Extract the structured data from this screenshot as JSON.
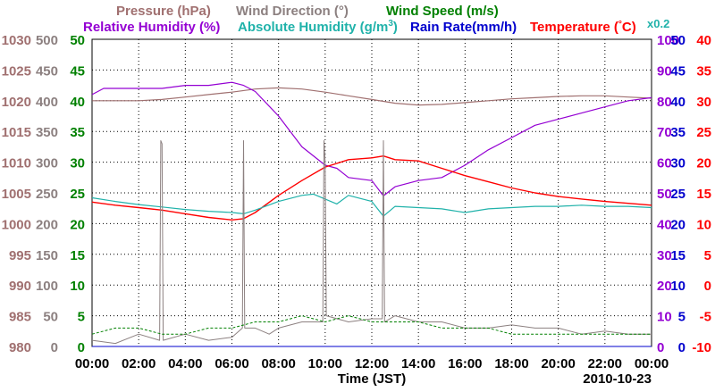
{
  "chart_data": {
    "type": "line",
    "date_label": "2010-10-23",
    "xlabel": "Time (JST)",
    "x_ticks": [
      "00:00",
      "02:00",
      "04:00",
      "06:00",
      "08:00",
      "10:00",
      "12:00",
      "14:00",
      "16:00",
      "18:00",
      "20:00",
      "22:00",
      "00:00"
    ],
    "x_range_hours": [
      0,
      24
    ],
    "legend_row1": [
      {
        "label": "Pressure (hPa)",
        "color": "#a07070"
      },
      {
        "label": "Wind Direction (°)",
        "color": "#8c8080"
      },
      {
        "label": "Wind Speed (m/s)",
        "color": "#008000"
      }
    ],
    "legend_row2": [
      {
        "label": "Relative Humidity (%)",
        "color": "#9400d3"
      },
      {
        "label": "Absolute Humidity (g/m",
        "sup": "3",
        "close": ")",
        "color": "#20b2aa"
      },
      {
        "label": "Rain Rate(mm/h)",
        "color": "#0000cd"
      },
      {
        "label": "Temperature (",
        "deg": "°",
        "unit": "C)",
        "color": "#ff0000"
      }
    ],
    "rain_scale_note": "x0.2",
    "axes": {
      "pressure": {
        "label": "Pressure (hPa)",
        "color": "#a07070",
        "range": [
          980,
          1030
        ],
        "ticks": [
          "980",
          "985",
          "990",
          "995",
          "1000",
          "1005",
          "1010",
          "1015",
          "1020",
          "1025",
          "1030"
        ]
      },
      "wind_direction": {
        "label": "Wind Direction (°)",
        "color": "#8c8080",
        "range": [
          0,
          500
        ],
        "ticks": [
          "0",
          "50",
          "100",
          "150",
          "200",
          "250",
          "300",
          "350",
          "400",
          "450",
          "500"
        ]
      },
      "wind_speed": {
        "label": "Wind Speed (m/s)",
        "color": "#008000",
        "range": [
          0,
          50
        ],
        "ticks": [
          "0",
          "5",
          "10",
          "15",
          "20",
          "25",
          "30",
          "35",
          "40",
          "45",
          "50"
        ]
      },
      "relative_humidity": {
        "label": "Relative Humidity (%)",
        "color": "#9400d3",
        "range": [
          0,
          100
        ],
        "ticks": [
          "0",
          "10",
          "20",
          "30",
          "40",
          "50",
          "60",
          "70",
          "80",
          "90",
          "100"
        ]
      },
      "rain_rate": {
        "label": "Rain Rate(mm/h)",
        "color": "#0000cd",
        "range": [
          0,
          50
        ],
        "ticks": [
          "0",
          "5",
          "10",
          "15",
          "20",
          "25",
          "30",
          "35",
          "40",
          "45",
          "50"
        ]
      },
      "temperature": {
        "label": "Temperature (°C)",
        "color": "#ff0000",
        "range": [
          -10,
          40
        ],
        "ticks": [
          "-10",
          "-5",
          "0",
          "5",
          "10",
          "15",
          "20",
          "25",
          "30",
          "35",
          "40"
        ]
      }
    },
    "series": [
      {
        "name": "Pressure",
        "unit": "hPa",
        "axis": "pressure",
        "color": "#a07070",
        "x": [
          0,
          1,
          2,
          3,
          4,
          5,
          6,
          7,
          8,
          9,
          10,
          11,
          12,
          13,
          14,
          15,
          16,
          17,
          18,
          19,
          20,
          21,
          22,
          23,
          24
        ],
        "values": [
          1020.0,
          1020.0,
          1020.0,
          1020.2,
          1020.6,
          1021.0,
          1021.4,
          1021.9,
          1022.1,
          1021.9,
          1021.4,
          1020.8,
          1020.2,
          1019.6,
          1019.3,
          1019.4,
          1019.7,
          1020.0,
          1020.3,
          1020.5,
          1020.7,
          1020.8,
          1020.8,
          1020.6,
          1020.4
        ]
      },
      {
        "name": "Relative Humidity",
        "unit": "%",
        "axis": "relative_humidity",
        "color": "#9400d3",
        "x": [
          0,
          0.5,
          1,
          2,
          3,
          4,
          5,
          6,
          6.5,
          7,
          8,
          9,
          10,
          10.5,
          11,
          12,
          12.5,
          13,
          14,
          15,
          16,
          17,
          18,
          19,
          20,
          21,
          22,
          23,
          24
        ],
        "values": [
          82,
          84,
          84,
          84,
          84,
          85,
          85,
          86,
          85,
          83,
          75,
          65,
          59,
          58,
          55,
          54,
          49,
          52,
          54,
          55,
          59,
          64,
          68,
          72,
          74,
          76,
          78,
          80,
          81
        ]
      },
      {
        "name": "Temperature",
        "unit": "°C",
        "axis": "temperature",
        "color": "#ff0000",
        "x": [
          0,
          1,
          2,
          3,
          4,
          5,
          6,
          6.5,
          7,
          8,
          9,
          10,
          10.5,
          11,
          12,
          12.5,
          13,
          14,
          15,
          16,
          17,
          18,
          19,
          20,
          21,
          22,
          23,
          24
        ],
        "values": [
          13.5,
          13.0,
          12.6,
          12.2,
          11.6,
          11.0,
          10.6,
          10.8,
          11.8,
          14.6,
          17.0,
          19.2,
          19.8,
          20.4,
          20.7,
          21.0,
          20.4,
          20.2,
          19.0,
          17.8,
          16.8,
          15.8,
          15.0,
          14.4,
          14.0,
          13.6,
          13.3,
          13.0
        ]
      },
      {
        "name": "Absolute Humidity",
        "unit": "g/m3",
        "axis": "wind_speed",
        "color": "#20b2aa",
        "x": [
          0,
          1,
          2,
          3,
          4,
          5,
          6,
          6.5,
          7,
          8,
          9,
          9.5,
          10,
          10.5,
          11,
          12,
          12.5,
          13,
          14,
          15,
          16,
          17,
          18,
          19,
          20,
          21,
          22,
          23,
          24
        ],
        "values": [
          24.2,
          23.6,
          23.1,
          22.7,
          22.3,
          22.0,
          21.8,
          21.6,
          22.2,
          23.6,
          24.6,
          24.8,
          24.0,
          23.2,
          24.6,
          23.6,
          21.2,
          22.8,
          22.6,
          22.4,
          21.8,
          22.4,
          22.6,
          22.8,
          22.8,
          23.0,
          22.8,
          22.8,
          22.6
        ]
      },
      {
        "name": "Wind Direction",
        "unit": "°",
        "axis": "wind_direction",
        "color": "#8c8080",
        "x": [
          0,
          1,
          2,
          2.9,
          2.95,
          3.0,
          3.05,
          4,
          5,
          6,
          6.45,
          6.5,
          6.55,
          7,
          7.6,
          8,
          9,
          9.9,
          9.95,
          10.0,
          10.05,
          11,
          12,
          12.45,
          12.5,
          12.55,
          13,
          14,
          15,
          16,
          17,
          18,
          19,
          20,
          21,
          22,
          23,
          24
        ],
        "values": [
          10,
          5,
          20,
          10,
          335,
          330,
          10,
          20,
          10,
          15,
          30,
          335,
          30,
          30,
          20,
          30,
          40,
          40,
          335,
          300,
          50,
          40,
          45,
          45,
          335,
          40,
          50,
          40,
          40,
          30,
          30,
          35,
          30,
          30,
          20,
          25,
          20,
          20
        ]
      },
      {
        "name": "Wind Speed",
        "unit": "m/s",
        "axis": "wind_speed",
        "color": "#008000",
        "x": [
          0,
          1,
          2,
          3,
          4,
          5,
          6,
          7,
          8,
          9,
          10,
          11,
          12,
          13,
          14,
          15,
          16,
          17,
          18,
          19,
          20,
          21,
          22,
          23,
          24
        ],
        "values": [
          2,
          3,
          3,
          2,
          2,
          3,
          3,
          4,
          4,
          5,
          4,
          5,
          4,
          4,
          4,
          3,
          3,
          3,
          2,
          2,
          2,
          2,
          2,
          2,
          2
        ]
      },
      {
        "name": "Rain Rate",
        "unit": "mm/h",
        "axis": "rain_rate",
        "color": "#0000cd",
        "x": [
          0,
          24
        ],
        "values": [
          0,
          0
        ]
      }
    ]
  }
}
